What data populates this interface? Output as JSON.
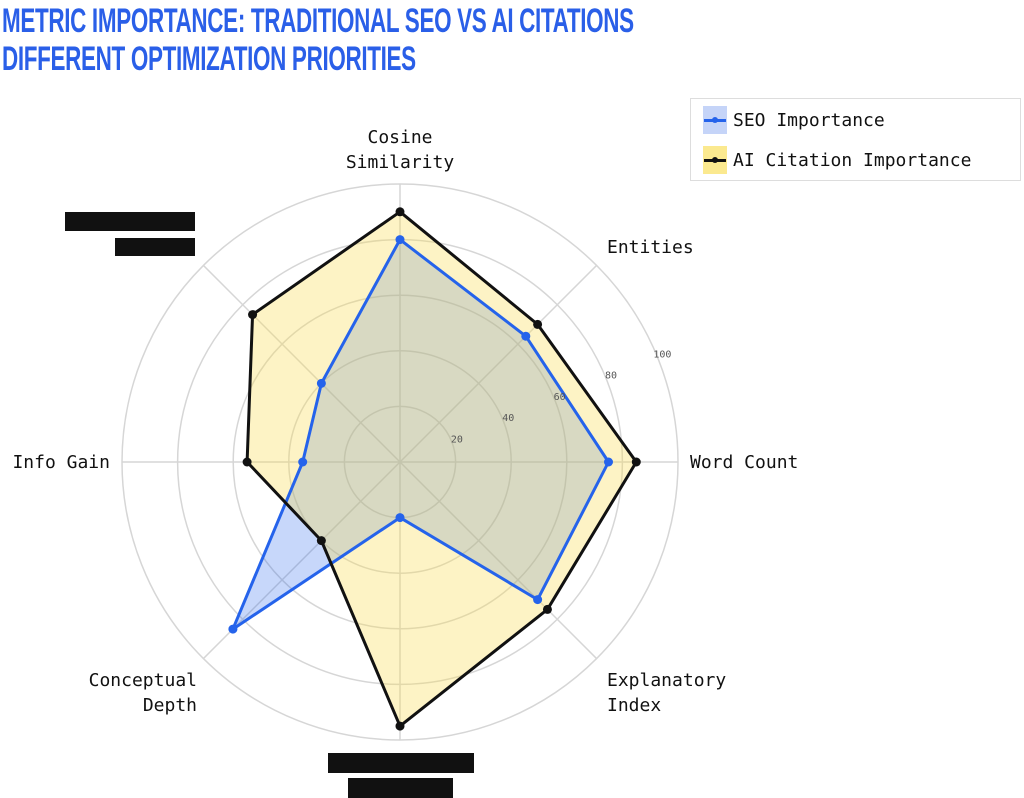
{
  "title_line1": "METRIC IMPORTANCE: TRADITIONAL SEO VS AI CITATIONS",
  "title_line2": "DIFFERENT OPTIMIZATION PRIORITIES",
  "chart_data": {
    "type": "radar",
    "categories": [
      "Cosine Similarity",
      "Entities",
      "Word Count",
      "Explanatory Index",
      "[redacted]",
      "Conceptual Depth",
      "Info Gain",
      "[redacted]"
    ],
    "category_lines": [
      [
        "Cosine",
        "Similarity"
      ],
      [
        "Entities"
      ],
      [
        "Word Count"
      ],
      [
        "Explanatory",
        "Index"
      ],
      [],
      [
        "Conceptual",
        "Depth"
      ],
      [
        "Info Gain"
      ],
      []
    ],
    "redacted": [
      false,
      false,
      false,
      false,
      true,
      false,
      false,
      true
    ],
    "rlim": [
      0,
      100
    ],
    "ticks": [
      "20",
      "40",
      "60",
      "80",
      "100"
    ],
    "tick_values": [
      20,
      40,
      60,
      80,
      100
    ],
    "grid": true,
    "legend_position": "top-right",
    "series": [
      {
        "name": "SEO Importance",
        "values": [
          80,
          64,
          75,
          70,
          20,
          85,
          35,
          40
        ],
        "color": "#2563eb",
        "fill": "#2563eb"
      },
      {
        "name": "AI Citation Importance",
        "values": [
          90,
          70,
          85,
          75,
          95,
          40,
          55,
          75
        ],
        "color": "#111111",
        "fill": "#f5d94a"
      }
    ]
  }
}
